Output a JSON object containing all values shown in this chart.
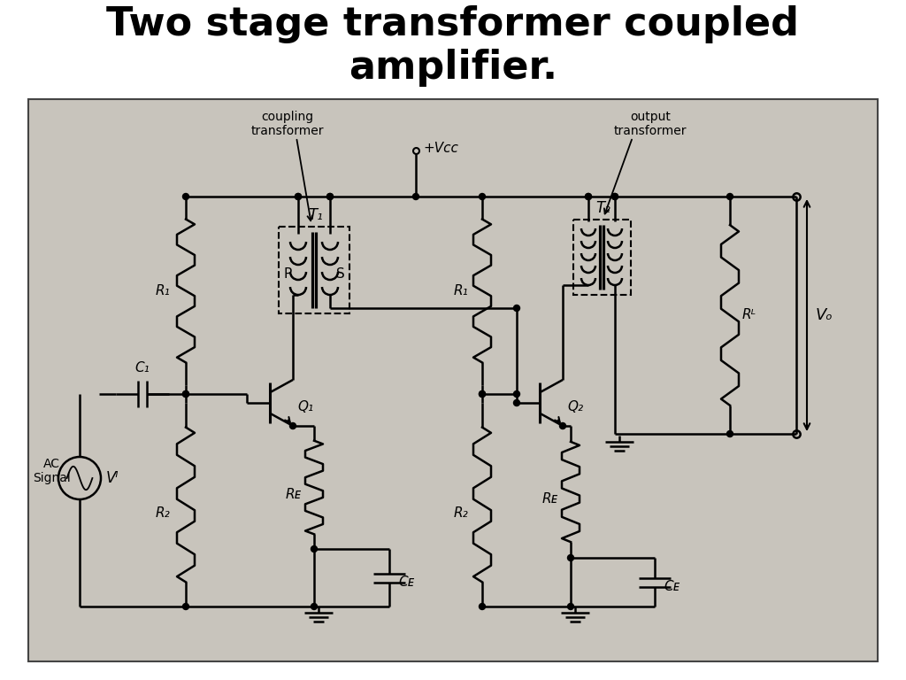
{
  "title": "Two stage transformer coupled\namplifier.",
  "title_fontsize": 32,
  "title_fontweight": "bold",
  "white": "#ffffff",
  "black": "#000000",
  "bg_color": "#c8c4bc",
  "labels": {
    "coupling_transformer": "coupling\ntransformer",
    "output_transformer": "output\ntransformer",
    "vcc": "+Vcc",
    "T1": "T₁",
    "T2": "T₂",
    "P": "P",
    "S": "S",
    "R1_s1": "R₁",
    "R1_s2": "R₁",
    "R2_s1": "R₂",
    "R2_s2": "R₂",
    "RE_s1": "Rᴇ",
    "RE_s2": "Rᴇ",
    "CE_s1": "Cᴇ",
    "CE_s2": "Cᴇ",
    "C1": "C₁",
    "Q1": "Q₁",
    "Q2": "Q₂",
    "RL": "Rᴸ",
    "Vo": "Vₒ",
    "AC_Signal": "AC\nSignal",
    "Vi": "Vᴵ"
  }
}
